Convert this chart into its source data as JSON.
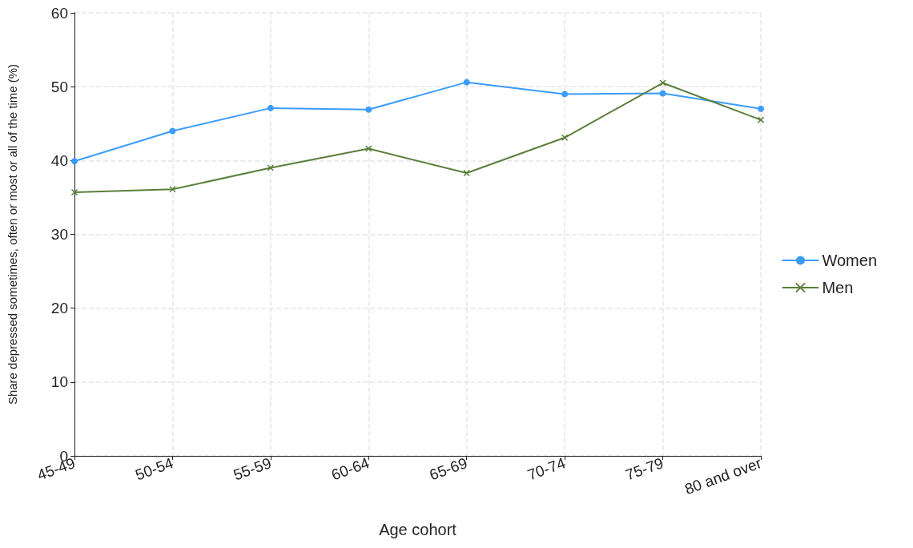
{
  "chart_data": {
    "type": "line",
    "xlabel": "Age cohort",
    "ylabel": "Share depressed sometimes, often or most or all of the time (%)",
    "categories": [
      "45-49",
      "50-54",
      "55-59",
      "60-64",
      "65-69",
      "70-74",
      "75-79",
      "80 and over"
    ],
    "series": [
      {
        "name": "Women",
        "color": "#3c9cfc",
        "marker": "circle",
        "values": [
          39.9,
          44.0,
          47.1,
          46.9,
          50.6,
          49.0,
          49.1,
          47.0
        ]
      },
      {
        "name": "Men",
        "color": "#5b7f3b",
        "marker": "cross",
        "values": [
          35.7,
          36.1,
          39.0,
          41.6,
          38.3,
          43.1,
          50.5,
          45.5
        ]
      }
    ],
    "ylim": [
      0,
      60
    ],
    "yticks": [
      0,
      10,
      20,
      30,
      40,
      50,
      60
    ],
    "grid": true,
    "legend": "right",
    "line_style": "solid"
  }
}
